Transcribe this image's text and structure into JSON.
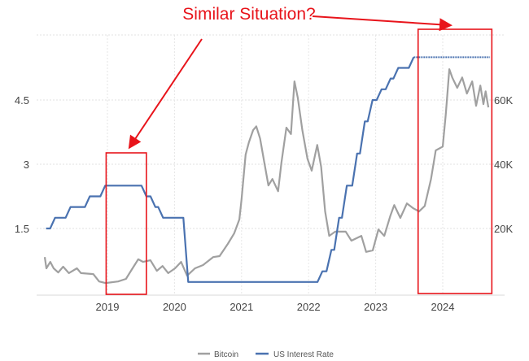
{
  "chart_data": {
    "type": "line",
    "title": "",
    "annotation": "Similar Situation?",
    "xlabel": "",
    "ylabel_left": "",
    "ylabel_right": "",
    "x_ticks": [
      "2019",
      "2020",
      "2021",
      "2022",
      "2023",
      "2024"
    ],
    "x_range": [
      "2018-01-01",
      "2024-11-01"
    ],
    "left_axis": {
      "ticks": [
        1.5,
        3,
        4.5
      ],
      "tick_labels": [
        "1.5",
        "3",
        "4.5"
      ],
      "range": [
        0,
        6.1
      ]
    },
    "right_axis": {
      "ticks": [
        20000,
        40000,
        60000
      ],
      "tick_labels": [
        "20K",
        "40K",
        "60K"
      ],
      "range": [
        0,
        81000
      ]
    },
    "grid": true,
    "legend_position": "bottom",
    "colors": {
      "bitcoin": "#a0a0a0",
      "rate": "#4a72b0",
      "annotation": "#e8141b"
    },
    "series": [
      {
        "name": "Bitcoin",
        "axis": "right",
        "points": [
          [
            "2018-01-25",
            11100
          ],
          [
            "2018-02-03",
            7600
          ],
          [
            "2018-02-24",
            9600
          ],
          [
            "2018-03-14",
            7600
          ],
          [
            "2018-04-08",
            6300
          ],
          [
            "2018-05-05",
            8100
          ],
          [
            "2018-06-05",
            6100
          ],
          [
            "2018-07-19",
            7600
          ],
          [
            "2018-08-10",
            6100
          ],
          [
            "2018-10-16",
            5800
          ],
          [
            "2018-11-17",
            3500
          ],
          [
            "2018-12-22",
            3000
          ],
          [
            "2019-02-28",
            3500
          ],
          [
            "2019-04-12",
            4300
          ],
          [
            "2019-05-12",
            7100
          ],
          [
            "2019-06-18",
            10400
          ],
          [
            "2019-07-14",
            9600
          ],
          [
            "2019-08-23",
            10100
          ],
          [
            "2019-09-27",
            6800
          ],
          [
            "2019-10-28",
            8300
          ],
          [
            "2019-11-28",
            6100
          ],
          [
            "2020-01-04",
            7600
          ],
          [
            "2020-02-06",
            9600
          ],
          [
            "2020-03-10",
            5300
          ],
          [
            "2020-04-22",
            7600
          ],
          [
            "2020-06-05",
            8600
          ],
          [
            "2020-07-30",
            11100
          ],
          [
            "2020-09-03",
            11400
          ],
          [
            "2020-10-18",
            15200
          ],
          [
            "2020-11-22",
            18500
          ],
          [
            "2020-12-20",
            22800
          ],
          [
            "2021-01-01",
            29100
          ],
          [
            "2021-01-23",
            43000
          ],
          [
            "2021-02-10",
            46800
          ],
          [
            "2021-03-05",
            50600
          ],
          [
            "2021-03-22",
            51800
          ],
          [
            "2021-04-12",
            48000
          ],
          [
            "2021-05-05",
            40500
          ],
          [
            "2021-05-27",
            33400
          ],
          [
            "2021-06-18",
            35400
          ],
          [
            "2021-07-19",
            31600
          ],
          [
            "2021-08-06",
            40500
          ],
          [
            "2021-09-02",
            51400
          ],
          [
            "2021-09-27",
            49400
          ],
          [
            "2021-10-16",
            65800
          ],
          [
            "2021-11-03",
            60700
          ],
          [
            "2021-11-28",
            50600
          ],
          [
            "2021-12-26",
            41700
          ],
          [
            "2022-01-18",
            38000
          ],
          [
            "2022-02-17",
            46000
          ],
          [
            "2022-03-10",
            39200
          ],
          [
            "2022-04-01",
            25300
          ],
          [
            "2022-04-23",
            17700
          ],
          [
            "2022-05-26",
            19000
          ],
          [
            "2022-07-22",
            19000
          ],
          [
            "2022-08-22",
            16200
          ],
          [
            "2022-10-15",
            17700
          ],
          [
            "2022-11-10",
            12700
          ],
          [
            "2022-12-16",
            13200
          ],
          [
            "2023-01-16",
            19700
          ],
          [
            "2023-02-17",
            17700
          ],
          [
            "2023-03-22",
            24000
          ],
          [
            "2023-04-12",
            27300
          ],
          [
            "2023-05-15",
            23300
          ],
          [
            "2023-06-20",
            27800
          ],
          [
            "2023-07-24",
            26300
          ],
          [
            "2023-08-25",
            25300
          ],
          [
            "2023-09-25",
            27000
          ],
          [
            "2023-10-29",
            35400
          ],
          [
            "2023-11-24",
            44300
          ],
          [
            "2024-01-01",
            45500
          ],
          [
            "2024-01-18",
            55700
          ],
          [
            "2024-02-06",
            69600
          ],
          [
            "2024-02-22",
            67000
          ],
          [
            "2024-03-20",
            63800
          ],
          [
            "2024-04-16",
            67000
          ],
          [
            "2024-05-12",
            62000
          ],
          [
            "2024-06-10",
            65800
          ],
          [
            "2024-07-01",
            58200
          ],
          [
            "2024-07-24",
            64500
          ],
          [
            "2024-08-10",
            58700
          ],
          [
            "2024-08-22",
            62700
          ],
          [
            "2024-09-06",
            57700
          ]
        ]
      },
      {
        "name": "US Interest Rate",
        "axis": "left",
        "points": [
          [
            "2018-02-01",
            1.5
          ],
          [
            "2018-03-22",
            1.75
          ],
          [
            "2018-06-14",
            2.0
          ],
          [
            "2018-09-27",
            2.25
          ],
          [
            "2018-12-20",
            2.5
          ],
          [
            "2019-08-01",
            2.25
          ],
          [
            "2019-09-19",
            2.0
          ],
          [
            "2019-10-31",
            1.75
          ],
          [
            "2020-03-16",
            0.25
          ],
          [
            "2022-03-17",
            0.5
          ],
          [
            "2022-05-05",
            1.0
          ],
          [
            "2022-06-16",
            1.75
          ],
          [
            "2022-07-28",
            2.5
          ],
          [
            "2022-09-22",
            3.25
          ],
          [
            "2022-11-03",
            4.0
          ],
          [
            "2022-12-15",
            4.5
          ],
          [
            "2023-02-02",
            4.75
          ],
          [
            "2023-03-23",
            5.0
          ],
          [
            "2023-05-04",
            5.25
          ],
          [
            "2023-07-27",
            5.5
          ],
          [
            "2024-09-15",
            5.5
          ]
        ]
      }
    ],
    "highlight_ranges": [
      [
        "2018-12-25",
        "2019-08-01"
      ],
      [
        "2023-08-20",
        "2024-09-25"
      ]
    ]
  }
}
